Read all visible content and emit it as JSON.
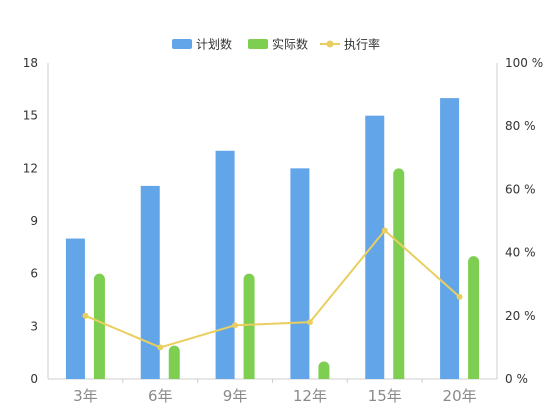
{
  "chart_data": {
    "type": "bar",
    "categories": [
      "3年",
      "6年",
      "9年",
      "12年",
      "15年",
      "20年"
    ],
    "series": [
      {
        "name": "计划数",
        "type": "bar",
        "axis": "left",
        "color": "#62a5e8",
        "values": [
          8,
          11,
          13,
          12,
          15,
          16
        ]
      },
      {
        "name": "实际数",
        "type": "bar",
        "axis": "left",
        "color": "#7ecf51",
        "values": [
          6,
          1.9,
          6,
          1,
          12,
          7
        ]
      },
      {
        "name": "执行率",
        "type": "line",
        "axis": "right",
        "color": "#e9cf5f",
        "values": [
          20,
          10,
          17,
          18,
          47,
          26
        ]
      }
    ],
    "y_left": {
      "ylim": [
        0,
        18
      ],
      "ticks": [
        "0",
        "3",
        "6",
        "9",
        "12",
        "15",
        "18"
      ]
    },
    "y_right": {
      "ylim": [
        0,
        100
      ],
      "ticks": [
        "0 %",
        "20 %",
        "40 %",
        "60 %",
        "80 %",
        "100 %"
      ]
    },
    "grid": false,
    "legend_placement": "top-center"
  }
}
